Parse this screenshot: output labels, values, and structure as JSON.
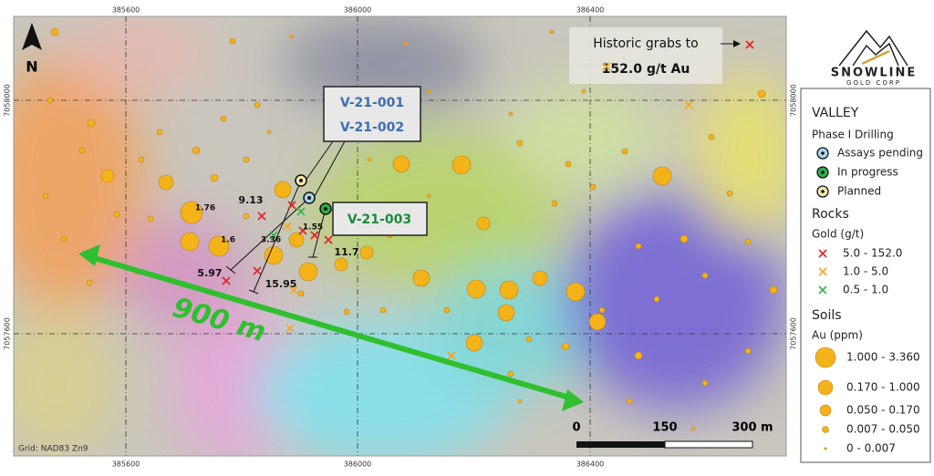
{
  "map": {
    "easting_labels": [
      "385600",
      "386000",
      "386400"
    ],
    "northing_labels": [
      "7058000",
      "7057600"
    ],
    "north": "N",
    "grid_label": "Grid: NAD83 Zn9",
    "distance": "900 m",
    "scale": [
      "0",
      "150",
      "300 m"
    ],
    "historic": [
      "Historic grabs to",
      "152.0 g/t Au"
    ],
    "holes_a": [
      "V-21-001",
      "V-21-002"
    ],
    "hole_b": "V-21-003",
    "assays": [
      "1.76",
      "9.13",
      "1.6",
      "3.36",
      "1.55",
      "11.7",
      "5.97",
      "15.95"
    ]
  },
  "logo": {
    "name": "SNOWLINE",
    "sub": "GOLD CORP"
  },
  "legend": {
    "title": "VALLEY",
    "drilling": {
      "title": "Phase I Drilling",
      "items": [
        "Assays pending",
        "In progress",
        "Planned"
      ]
    },
    "rocks": {
      "title": "Rocks",
      "unit": "Gold (g/t)",
      "items": [
        "5.0 - 152.0",
        "1.0 - 5.0",
        "0.5 - 1.0"
      ]
    },
    "soils": {
      "title": "Soils",
      "unit": "Au (ppm)",
      "items": [
        "1.000 - 3.360",
        "0.170 - 1.000",
        "0.050 - 0.170",
        "0.007 - 0.050",
        "0 - 0.007"
      ]
    }
  }
}
